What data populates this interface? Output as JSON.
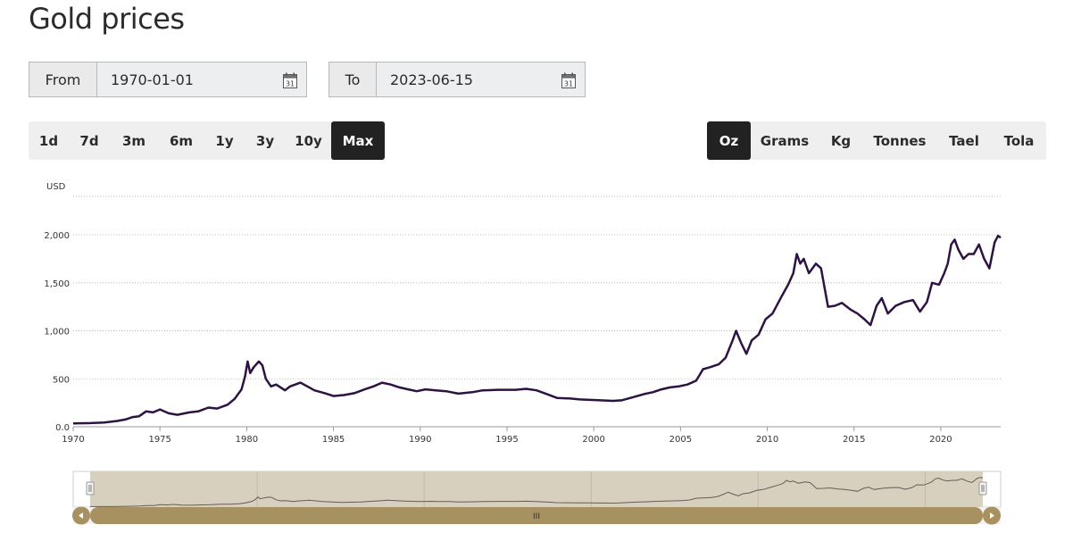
{
  "title": "Gold prices",
  "date_range": {
    "from_label": "From",
    "from_value": "1970-01-01",
    "to_label": "To",
    "to_value": "2023-06-15",
    "calendar_icon": "calendar-icon",
    "calendar_day": "31"
  },
  "range_buttons": [
    {
      "label": "1d",
      "active": false
    },
    {
      "label": "7d",
      "active": false
    },
    {
      "label": "3m",
      "active": false
    },
    {
      "label": "6m",
      "active": false
    },
    {
      "label": "1y",
      "active": false
    },
    {
      "label": "3y",
      "active": false
    },
    {
      "label": "10y",
      "active": false
    },
    {
      "label": "Max",
      "active": true
    }
  ],
  "unit_buttons": [
    {
      "label": "Oz",
      "active": true
    },
    {
      "label": "Grams",
      "active": false
    },
    {
      "label": "Kg",
      "active": false
    },
    {
      "label": "Tonnes",
      "active": false
    },
    {
      "label": "Tael",
      "active": false
    },
    {
      "label": "Tola",
      "active": false
    }
  ],
  "navigator": {
    "scroll_grip": "III"
  },
  "colors": {
    "line": "#2d1244",
    "navigator_fill": "#d8d0bf",
    "scrollbar": "#a89160",
    "active_button": "#222222"
  },
  "chart_data": {
    "type": "line",
    "title": "",
    "xlabel": "",
    "ylabel": "USD",
    "ylim": [
      0,
      2400
    ],
    "xlim": [
      1970,
      2023.45
    ],
    "grid": true,
    "y_ticks": [
      "0.0",
      "500",
      "1,000",
      "1,500",
      "2,000"
    ],
    "x_ticks": [
      "1970",
      "1975",
      "1980",
      "1985",
      "1990",
      "1995",
      "2000",
      "2005",
      "2010",
      "2015",
      "2020"
    ],
    "series": [
      {
        "x": [
          1970,
          1971,
          1971.8,
          1972.5,
          1973.0,
          1973.4,
          1973.8,
          1974.2,
          1974.6,
          1975.0,
          1975.5,
          1976.0,
          1976.7,
          1977.2,
          1977.8,
          1978.3,
          1978.9,
          1979.3,
          1979.7,
          1979.9,
          1980.05,
          1980.2,
          1980.4,
          1980.7,
          1980.9,
          1981.1,
          1981.4,
          1981.7,
          1982.2,
          1982.5,
          1982.8,
          1983.1,
          1983.5,
          1983.9,
          1984.5,
          1985.0,
          1985.6,
          1986.2,
          1986.8,
          1987.3,
          1987.8,
          1988.3,
          1988.8,
          1989.3,
          1989.8,
          1990.3,
          1990.9,
          1991.5,
          1992.2,
          1993.0,
          1993.6,
          1994.5,
          1995.5,
          1996.1,
          1996.7,
          1997.3,
          1997.9,
          1998.6,
          1999.2,
          1999.8,
          2000.4,
          2001.1,
          2001.6,
          2002.3,
          2002.9,
          2003.4,
          2003.9,
          2004.4,
          2004.9,
          2005.4,
          2005.9,
          2006.3,
          2006.7,
          2007.2,
          2007.6,
          2008.0,
          2008.2,
          2008.5,
          2008.8,
          2009.1,
          2009.5,
          2009.9,
          2010.3,
          2010.8,
          2011.2,
          2011.5,
          2011.7,
          2011.9,
          2012.1,
          2012.4,
          2012.8,
          2013.1,
          2013.3,
          2013.5,
          2013.9,
          2014.3,
          2014.8,
          2015.2,
          2015.6,
          2015.95,
          2016.3,
          2016.6,
          2016.95,
          2017.4,
          2017.9,
          2018.4,
          2018.8,
          2019.2,
          2019.5,
          2019.9,
          2020.2,
          2020.4,
          2020.6,
          2020.8,
          2021.0,
          2021.3,
          2021.6,
          2021.9,
          2022.2,
          2022.5,
          2022.8,
          2023.1,
          2023.3,
          2023.45
        ],
        "y": [
          35,
          38,
          45,
          60,
          75,
          100,
          110,
          160,
          150,
          180,
          140,
          125,
          150,
          160,
          200,
          190,
          230,
          290,
          390,
          520,
          680,
          560,
          620,
          680,
          640,
          500,
          420,
          440,
          380,
          420,
          440,
          460,
          420,
          380,
          350,
          320,
          330,
          350,
          390,
          420,
          460,
          440,
          410,
          390,
          370,
          390,
          380,
          370,
          345,
          360,
          380,
          385,
          385,
          395,
          380,
          340,
          300,
          295,
          285,
          280,
          275,
          270,
          275,
          310,
          340,
          360,
          390,
          410,
          420,
          440,
          480,
          600,
          620,
          650,
          720,
          900,
          1000,
          870,
          760,
          900,
          960,
          1120,
          1180,
          1350,
          1480,
          1600,
          1800,
          1700,
          1750,
          1600,
          1700,
          1650,
          1450,
          1250,
          1260,
          1290,
          1220,
          1180,
          1120,
          1060,
          1260,
          1340,
          1180,
          1260,
          1300,
          1320,
          1200,
          1300,
          1500,
          1480,
          1600,
          1700,
          1900,
          1950,
          1850,
          1750,
          1800,
          1800,
          1900,
          1750,
          1650,
          1920,
          1990,
          1970
        ]
      }
    ]
  }
}
